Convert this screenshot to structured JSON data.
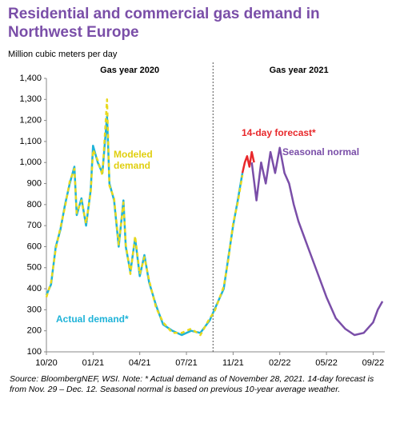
{
  "chart_data": {
    "type": "line",
    "title": "Residential and commercial gas demand in Northwest Europe",
    "ylabel": "Million cubic meters per day",
    "annotations": [
      "Gas year 2020",
      "Gas year 2021"
    ],
    "divider_x": 3.57,
    "note": "Source: BloombergNEF, WSI. Note: * Actual demand as of November 28, 2021. 14-day forecast is from Nov. 29 – Dec. 12. Seasonal normal is based on previous 10-year average weather.",
    "xlim": [
      0,
      7.25
    ],
    "xticks": [
      {
        "value": 0,
        "label": "10/20"
      },
      {
        "value": 1,
        "label": "01/21"
      },
      {
        "value": 2,
        "label": "04/21"
      },
      {
        "value": 3,
        "label": "07/21"
      },
      {
        "value": 4,
        "label": "11/21"
      },
      {
        "value": 5,
        "label": "02/22"
      },
      {
        "value": 6,
        "label": "05/22"
      },
      {
        "value": 7,
        "label": "09/22"
      }
    ],
    "ylim": [
      100,
      1400
    ],
    "yticks": [
      100,
      200,
      300,
      400,
      500,
      600,
      700,
      800,
      900,
      {
        "value": 1000,
        "label": "1,000"
      },
      {
        "value": 1100,
        "label": "1,100"
      },
      {
        "value": 1200,
        "label": "1,200"
      },
      {
        "value": 1300,
        "label": "1,300"
      },
      {
        "value": 1400,
        "label": "1,400"
      }
    ],
    "series": [
      {
        "name": "Actual demand*",
        "color": "#1fb3d8",
        "dashed": false,
        "x": [
          0,
          0.1,
          0.2,
          0.3,
          0.4,
          0.5,
          0.6,
          0.65,
          0.75,
          0.85,
          0.95,
          1.0,
          1.1,
          1.2,
          1.3,
          1.35,
          1.45,
          1.55,
          1.65,
          1.7,
          1.8,
          1.9,
          2.0,
          2.1,
          2.2,
          2.35,
          2.5,
          2.7,
          2.9,
          3.1,
          3.3,
          3.5,
          3.6,
          3.8,
          3.9,
          4.0,
          4.1,
          4.2
        ],
        "values": [
          370,
          420,
          600,
          680,
          800,
          900,
          980,
          750,
          830,
          700,
          870,
          1080,
          1000,
          950,
          1220,
          900,
          820,
          600,
          820,
          600,
          480,
          640,
          460,
          560,
          430,
          320,
          230,
          200,
          180,
          200,
          190,
          250,
          300,
          400,
          550,
          700,
          820,
          950
        ]
      },
      {
        "name": "Modeled demand",
        "color": "#e8d81c",
        "dashed": true,
        "x": [
          0,
          0.1,
          0.2,
          0.3,
          0.4,
          0.5,
          0.6,
          0.65,
          0.75,
          0.85,
          0.95,
          1.0,
          1.1,
          1.2,
          1.3,
          1.35,
          1.45,
          1.55,
          1.65,
          1.7,
          1.8,
          1.9,
          2.0,
          2.1,
          2.2,
          2.35,
          2.5,
          2.7,
          2.9,
          3.1,
          3.3,
          3.5,
          3.6,
          3.8,
          3.9,
          4.0,
          4.1,
          4.2
        ],
        "values": [
          360,
          430,
          590,
          690,
          790,
          910,
          970,
          760,
          820,
          710,
          860,
          1060,
          1010,
          940,
          1300,
          890,
          830,
          610,
          810,
          610,
          470,
          650,
          470,
          550,
          440,
          310,
          240,
          190,
          190,
          210,
          180,
          260,
          290,
          410,
          540,
          710,
          810,
          940
        ]
      },
      {
        "name": "14-day forecast*",
        "color": "#e8282b",
        "dashed": false,
        "x": [
          4.2,
          4.25,
          4.3,
          4.35,
          4.4,
          4.45
        ],
        "values": [
          950,
          1000,
          1030,
          980,
          1050,
          1000
        ]
      },
      {
        "name": "Seasonal normal",
        "color": "#7a4ea8",
        "dashed": false,
        "x": [
          4.4,
          4.5,
          4.6,
          4.7,
          4.8,
          4.9,
          5.0,
          5.1,
          5.2,
          5.3,
          5.4,
          5.6,
          5.8,
          6.0,
          6.2,
          6.4,
          6.6,
          6.8,
          7.0,
          7.1,
          7.2
        ],
        "values": [
          1000,
          820,
          1000,
          900,
          1050,
          950,
          1070,
          950,
          900,
          800,
          720,
          600,
          480,
          360,
          260,
          210,
          180,
          190,
          240,
          300,
          340
        ]
      }
    ]
  }
}
